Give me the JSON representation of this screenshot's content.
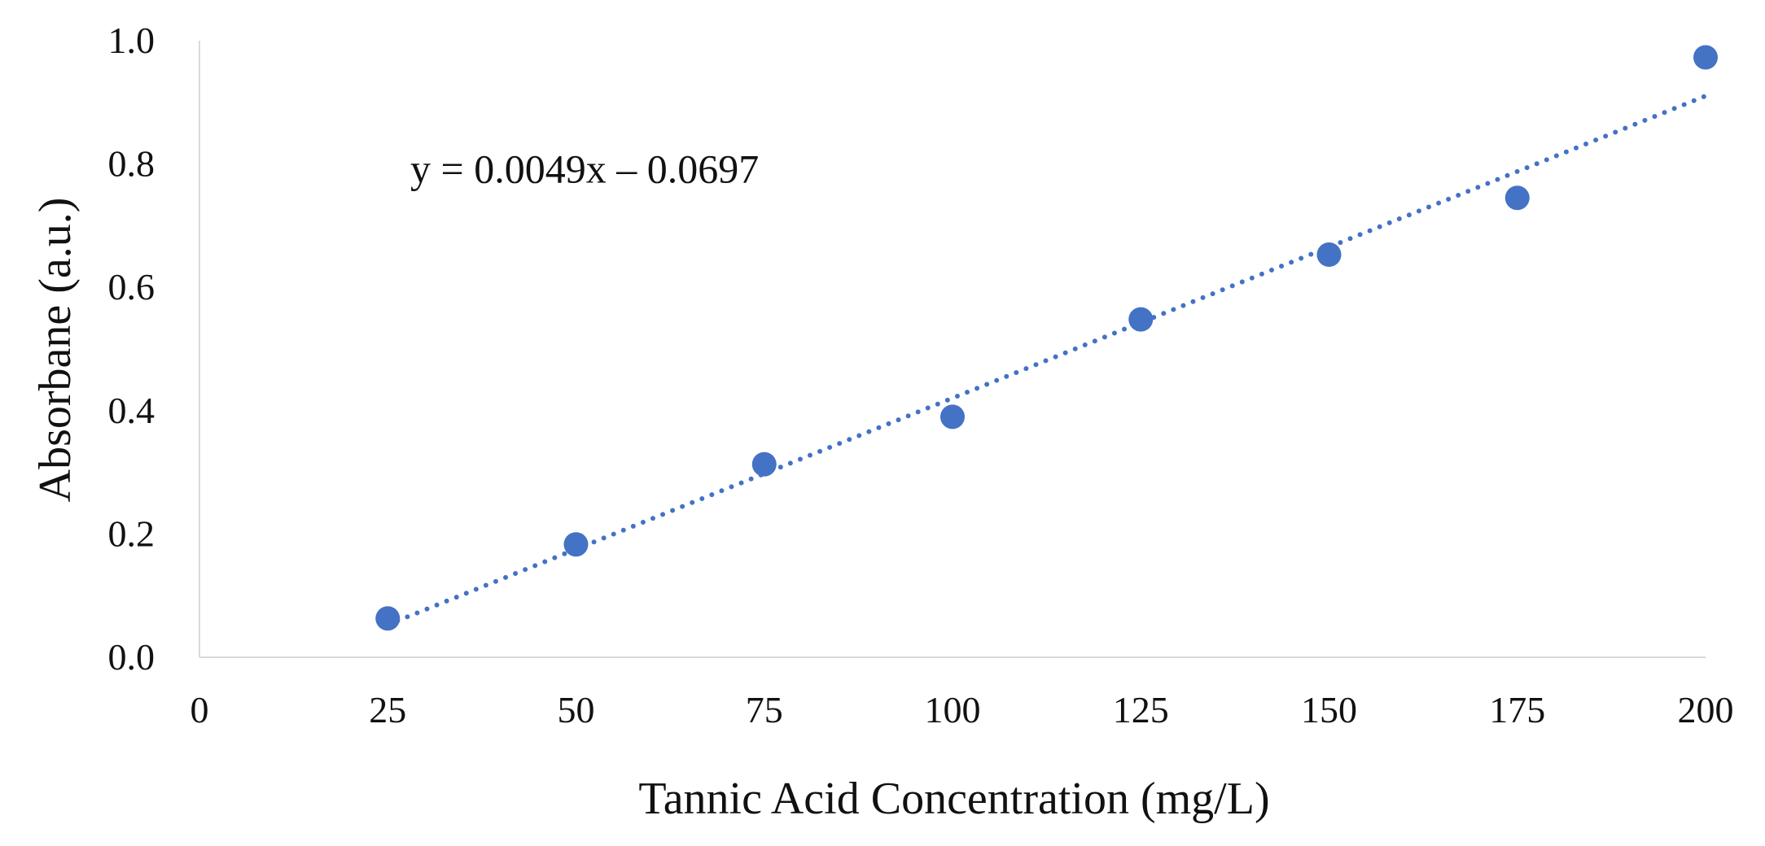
{
  "chart_data": {
    "type": "scatter",
    "title": "",
    "xlabel": "Tannic Acid Concentration (mg/L)",
    "ylabel": "Absorbane (a.u.)",
    "xlim": [
      0,
      200
    ],
    "ylim": [
      0,
      1.0
    ],
    "x_ticks": [
      0,
      25,
      50,
      75,
      100,
      125,
      150,
      175,
      200
    ],
    "x_tick_labels": [
      "0",
      "25",
      "50",
      "75",
      "100",
      "125",
      "150",
      "175",
      "200"
    ],
    "y_ticks": [
      0,
      0.2,
      0.4,
      0.6,
      0.8,
      1.0
    ],
    "y_tick_labels": [
      "0.0",
      "0.2",
      "0.4",
      "0.6",
      "0.8",
      "1.0"
    ],
    "grid": false,
    "legend": "none",
    "series": [
      {
        "x": [
          25,
          50,
          75,
          100,
          125,
          150,
          175,
          200
        ],
        "y": [
          0.063,
          0.183,
          0.313,
          0.39,
          0.548,
          0.653,
          0.745,
          0.973
        ],
        "color": "#4472C4"
      }
    ],
    "trendline": {
      "type": "linear",
      "slope": 0.0049,
      "intercept": -0.0697,
      "x_range": [
        25,
        200
      ],
      "style": "dotted",
      "color": "#4472C4"
    },
    "annotations": [
      {
        "text": "y = 0.0049x – 0.0697",
        "x": 28,
        "y": 0.77
      }
    ]
  },
  "colors": {
    "axis": "#d9d9d9",
    "text": "#111111",
    "series": "#4472C4"
  }
}
